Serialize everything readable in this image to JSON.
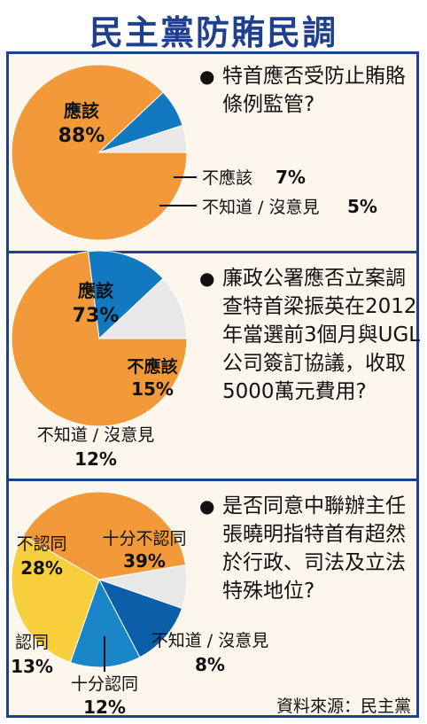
{
  "title": "民主黨防賄民調",
  "source": "資料來源：民主黨",
  "charts": [
    {
      "question": "特首應否受防止賄賂條例監管?",
      "chart_data": {
        "type": "pie",
        "categories": [
          "應該",
          "不應該",
          "不知道 / 沒意見"
        ],
        "values": [
          88,
          7,
          5
        ],
        "value_labels": [
          "88%",
          "7%",
          "5%"
        ],
        "colors": [
          "#f29a3a",
          "#1279c1",
          "#e8e8e8"
        ]
      }
    },
    {
      "question": "廉政公署應否立案調查特首梁振英在2012年當選前3個月與UGL公司簽訂協議，收取5000萬元費用?",
      "chart_data": {
        "type": "pie",
        "categories": [
          "應該",
          "不應該",
          "不知道 / 沒意見"
        ],
        "values": [
          73,
          15,
          12
        ],
        "value_labels": [
          "73%",
          "15%",
          "12%"
        ],
        "colors": [
          "#f29a3a",
          "#1279c1",
          "#e8e8e8"
        ]
      }
    },
    {
      "question": "是否同意中聯辦主任張曉明指特首有超然於行政、司法及立法特殊地位?",
      "chart_data": {
        "type": "pie",
        "categories": [
          "十分不認同",
          "不知道 / 沒意見",
          "十分認同",
          "認同",
          "不認同"
        ],
        "values": [
          39,
          8,
          12,
          13,
          28
        ],
        "value_labels": [
          "39%",
          "8%",
          "12%",
          "13%",
          "28%"
        ],
        "colors": [
          "#f29a3a",
          "#e8e8e8",
          "#0b5fa8",
          "#1a86c8",
          "#f7cf3c"
        ]
      }
    }
  ]
}
